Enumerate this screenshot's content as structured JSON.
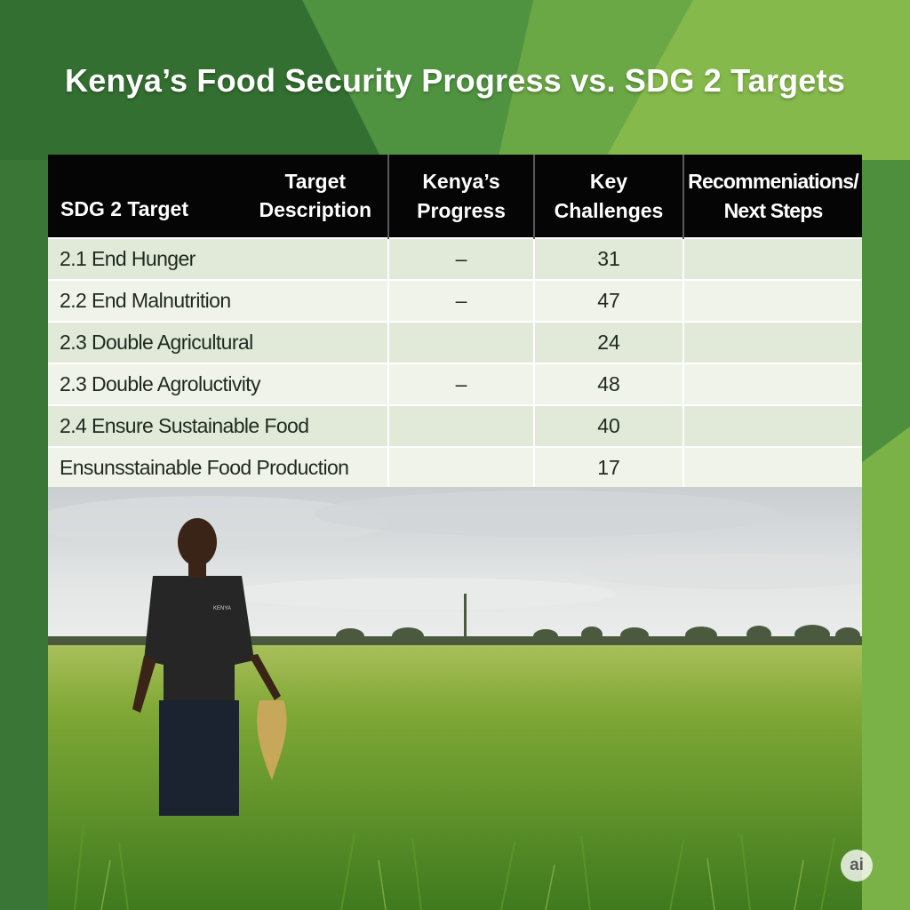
{
  "title": "Kenya’s Food Security Progress vs. SDG 2 Targets",
  "colors": {
    "background_dark": "#3f7f3a",
    "background_light": "#86b84a",
    "header_bg": "#050505",
    "row_odd": "#e1ead8",
    "row_even": "#f0f3ea"
  },
  "table": {
    "headers": {
      "target": "SDG 2 Target",
      "description": "Target\nDescription",
      "progress": "Kenya’s\nProgress",
      "challenges": "Key\nChallenges",
      "recommendations": "Recommeniations/\nNext Steps"
    },
    "rows": [
      {
        "target": "2.1 End Hunger",
        "progress": "–",
        "challenges": "31",
        "recommendations": ""
      },
      {
        "target": "2.2 End Malnutrition",
        "progress": "–",
        "challenges": "47",
        "recommendations": ""
      },
      {
        "target": "2.3 Double Agricultural",
        "progress": "",
        "challenges": "24",
        "recommendations": ""
      },
      {
        "target": "2.3 Double Agroluctivity",
        "progress": "–",
        "challenges": "48",
        "recommendations": ""
      },
      {
        "target": "2.4 Ensure Sustainable Food",
        "progress": "",
        "challenges": "40",
        "recommendations": ""
      },
      {
        "target": "Ensunsstainable Food Production",
        "progress": "",
        "challenges": "17",
        "recommendations": ""
      }
    ]
  },
  "badge": {
    "label": "ai",
    "icon": "ai-watermark-icon"
  },
  "photo": {
    "shirt_logo_text": "KENYA"
  }
}
